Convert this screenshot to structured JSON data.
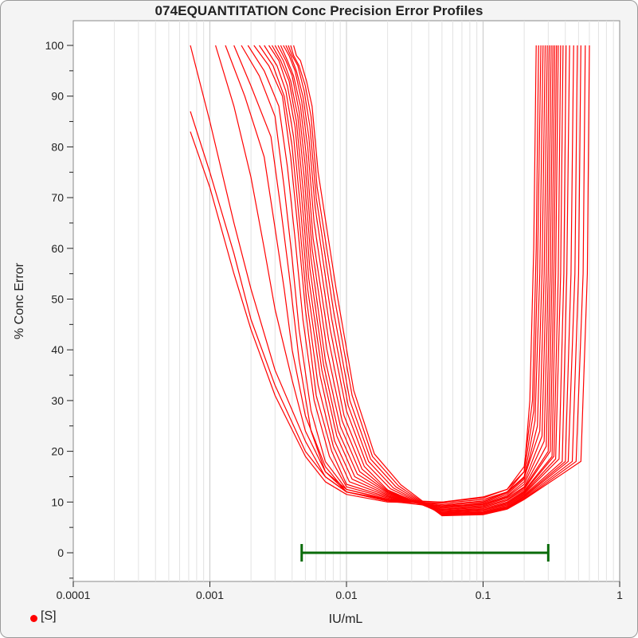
{
  "chart_data": {
    "type": "line",
    "title": "074EQUANTITATION Conc Precision Error Profiles",
    "xlabel": "IU/mL",
    "ylabel": "% Conc Error",
    "x_scale": "log",
    "xlim": [
      0.0001,
      1
    ],
    "ylim": [
      -6,
      100
    ],
    "x_ticks": [
      "0.0001",
      "0.001",
      "0.01",
      "0.1",
      "1"
    ],
    "y_ticks": [
      "0",
      "10",
      "20",
      "30",
      "40",
      "50",
      "60",
      "70",
      "80",
      "90",
      "100"
    ],
    "grid": true,
    "legend": {
      "position": "bottom-left",
      "entries": [
        {
          "label": "[S]",
          "color": "#ff0000",
          "marker": "dot"
        }
      ]
    },
    "series_color": "#ff0000",
    "profiles": [
      [
        [
          0.00072,
          83
        ],
        [
          0.001,
          72
        ],
        [
          0.0015,
          55
        ],
        [
          0.002,
          44
        ],
        [
          0.003,
          31
        ],
        [
          0.005,
          19
        ],
        [
          0.007,
          14
        ],
        [
          0.01,
          11.5
        ],
        [
          0.02,
          10
        ],
        [
          0.05,
          9.8
        ],
        [
          0.1,
          10.5
        ],
        [
          0.15,
          12
        ],
        [
          0.2,
          16
        ],
        [
          0.22,
          30
        ],
        [
          0.235,
          60
        ],
        [
          0.245,
          100
        ]
      ],
      [
        [
          0.00072,
          87
        ],
        [
          0.001,
          75
        ],
        [
          0.0015,
          59
        ],
        [
          0.002,
          46
        ],
        [
          0.003,
          33
        ],
        [
          0.005,
          20
        ],
        [
          0.007,
          15
        ],
        [
          0.01,
          12
        ],
        [
          0.02,
          10.2
        ],
        [
          0.05,
          10
        ],
        [
          0.1,
          11
        ],
        [
          0.15,
          12.5
        ],
        [
          0.2,
          17
        ],
        [
          0.23,
          30
        ],
        [
          0.245,
          60
        ],
        [
          0.255,
          100
        ]
      ],
      [
        [
          0.00072,
          100
        ],
        [
          0.001,
          85
        ],
        [
          0.0015,
          65
        ],
        [
          0.002,
          52
        ],
        [
          0.003,
          36
        ],
        [
          0.005,
          22
        ],
        [
          0.007,
          15
        ],
        [
          0.01,
          12
        ],
        [
          0.02,
          10.5
        ],
        [
          0.05,
          10
        ],
        [
          0.1,
          10.8
        ],
        [
          0.15,
          12.5
        ],
        [
          0.2,
          16
        ],
        [
          0.235,
          28
        ],
        [
          0.25,
          55
        ],
        [
          0.265,
          100
        ]
      ],
      [
        [
          0.0011,
          100
        ],
        [
          0.0015,
          88
        ],
        [
          0.002,
          74
        ],
        [
          0.0025,
          60
        ],
        [
          0.003,
          48
        ],
        [
          0.004,
          34
        ],
        [
          0.005,
          24
        ],
        [
          0.007,
          16
        ],
        [
          0.01,
          12.5
        ],
        [
          0.02,
          10.5
        ],
        [
          0.05,
          9.5
        ],
        [
          0.1,
          10.2
        ],
        [
          0.15,
          12
        ],
        [
          0.2,
          15
        ],
        [
          0.24,
          26
        ],
        [
          0.26,
          55
        ],
        [
          0.275,
          100
        ]
      ],
      [
        [
          0.0013,
          100
        ],
        [
          0.0018,
          90
        ],
        [
          0.0025,
          78
        ],
        [
          0.003,
          64
        ],
        [
          0.0035,
          52
        ],
        [
          0.004,
          40
        ],
        [
          0.005,
          27
        ],
        [
          0.007,
          17
        ],
        [
          0.01,
          12
        ],
        [
          0.02,
          10.2
        ],
        [
          0.05,
          9
        ],
        [
          0.1,
          9.8
        ],
        [
          0.15,
          11.5
        ],
        [
          0.2,
          14.5
        ],
        [
          0.25,
          25
        ],
        [
          0.27,
          55
        ],
        [
          0.285,
          100
        ]
      ],
      [
        [
          0.0015,
          100
        ],
        [
          0.002,
          92
        ],
        [
          0.0028,
          82
        ],
        [
          0.0033,
          68
        ],
        [
          0.0038,
          55
        ],
        [
          0.0045,
          38
        ],
        [
          0.0055,
          24
        ],
        [
          0.007,
          16
        ],
        [
          0.01,
          12
        ],
        [
          0.02,
          10.4
        ],
        [
          0.05,
          9.3
        ],
        [
          0.1,
          10
        ],
        [
          0.15,
          11.8
        ],
        [
          0.2,
          14.8
        ],
        [
          0.26,
          24
        ],
        [
          0.28,
          55
        ],
        [
          0.295,
          100
        ]
      ],
      [
        [
          0.0017,
          100
        ],
        [
          0.0023,
          94
        ],
        [
          0.003,
          86
        ],
        [
          0.0035,
          72
        ],
        [
          0.004,
          58
        ],
        [
          0.0045,
          44
        ],
        [
          0.0055,
          28
        ],
        [
          0.007,
          18
        ],
        [
          0.01,
          12.5
        ],
        [
          0.02,
          10.6
        ],
        [
          0.05,
          9.2
        ],
        [
          0.1,
          9.6
        ],
        [
          0.15,
          11.2
        ],
        [
          0.2,
          14
        ],
        [
          0.27,
          23
        ],
        [
          0.29,
          55
        ],
        [
          0.305,
          100
        ]
      ],
      [
        [
          0.0019,
          100
        ],
        [
          0.0025,
          95
        ],
        [
          0.0032,
          88
        ],
        [
          0.0037,
          76
        ],
        [
          0.0042,
          62
        ],
        [
          0.0048,
          46
        ],
        [
          0.0058,
          30
        ],
        [
          0.0075,
          19
        ],
        [
          0.01,
          13
        ],
        [
          0.02,
          10.8
        ],
        [
          0.05,
          9
        ],
        [
          0.1,
          9.5
        ],
        [
          0.15,
          11
        ],
        [
          0.2,
          13.5
        ],
        [
          0.28,
          22
        ],
        [
          0.3,
          55
        ],
        [
          0.315,
          100
        ]
      ],
      [
        [
          0.0021,
          100
        ],
        [
          0.0027,
          96
        ],
        [
          0.0034,
          90
        ],
        [
          0.0039,
          78
        ],
        [
          0.0044,
          64
        ],
        [
          0.005,
          48
        ],
        [
          0.006,
          31
        ],
        [
          0.0078,
          20
        ],
        [
          0.01,
          13.5
        ],
        [
          0.02,
          11
        ],
        [
          0.05,
          8.8
        ],
        [
          0.1,
          9.3
        ],
        [
          0.15,
          10.8
        ],
        [
          0.2,
          13
        ],
        [
          0.29,
          21
        ],
        [
          0.31,
          55
        ],
        [
          0.325,
          100
        ]
      ],
      [
        [
          0.0023,
          100
        ],
        [
          0.0029,
          96
        ],
        [
          0.0035,
          90
        ],
        [
          0.004,
          80
        ],
        [
          0.0045,
          66
        ],
        [
          0.0051,
          50
        ],
        [
          0.0062,
          33
        ],
        [
          0.008,
          21
        ],
        [
          0.0105,
          14
        ],
        [
          0.02,
          11.2
        ],
        [
          0.05,
          8.6
        ],
        [
          0.1,
          9.1
        ],
        [
          0.15,
          10.5
        ],
        [
          0.2,
          12.8
        ],
        [
          0.3,
          20
        ],
        [
          0.32,
          55
        ],
        [
          0.335,
          100
        ]
      ],
      [
        [
          0.0025,
          100
        ],
        [
          0.0031,
          96
        ],
        [
          0.0036,
          91
        ],
        [
          0.0041,
          82
        ],
        [
          0.0046,
          68
        ],
        [
          0.0052,
          52
        ],
        [
          0.0064,
          35
        ],
        [
          0.0082,
          22
        ],
        [
          0.011,
          14.5
        ],
        [
          0.02,
          11.4
        ],
        [
          0.05,
          8.5
        ],
        [
          0.1,
          8.9
        ],
        [
          0.15,
          10.3
        ],
        [
          0.2,
          12.5
        ],
        [
          0.31,
          20
        ],
        [
          0.33,
          55
        ],
        [
          0.345,
          100
        ]
      ],
      [
        [
          0.0027,
          100
        ],
        [
          0.0032,
          97
        ],
        [
          0.0037,
          92
        ],
        [
          0.0042,
          84
        ],
        [
          0.0047,
          70
        ],
        [
          0.0053,
          54
        ],
        [
          0.0066,
          36
        ],
        [
          0.0085,
          23
        ],
        [
          0.0115,
          15
        ],
        [
          0.02,
          11.6
        ],
        [
          0.05,
          8.3
        ],
        [
          0.1,
          8.7
        ],
        [
          0.15,
          10
        ],
        [
          0.2,
          12.2
        ],
        [
          0.32,
          19
        ],
        [
          0.34,
          55
        ],
        [
          0.355,
          100
        ]
      ],
      [
        [
          0.00285,
          100
        ],
        [
          0.0033,
          97
        ],
        [
          0.0038,
          93
        ],
        [
          0.0043,
          85
        ],
        [
          0.0048,
          72
        ],
        [
          0.0054,
          56
        ],
        [
          0.0068,
          37
        ],
        [
          0.0087,
          24
        ],
        [
          0.012,
          15.5
        ],
        [
          0.02,
          11.8
        ],
        [
          0.05,
          8.2
        ],
        [
          0.1,
          8.5
        ],
        [
          0.15,
          9.8
        ],
        [
          0.2,
          12
        ],
        [
          0.33,
          19
        ],
        [
          0.355,
          55
        ],
        [
          0.37,
          100
        ]
      ],
      [
        [
          0.003,
          100
        ],
        [
          0.00345,
          97
        ],
        [
          0.0039,
          93
        ],
        [
          0.0044,
          86
        ],
        [
          0.0049,
          74
        ],
        [
          0.0055,
          58
        ],
        [
          0.007,
          38
        ],
        [
          0.009,
          25
        ],
        [
          0.0125,
          16
        ],
        [
          0.02,
          12
        ],
        [
          0.05,
          8
        ],
        [
          0.1,
          8.4
        ],
        [
          0.15,
          9.6
        ],
        [
          0.2,
          11.8
        ],
        [
          0.34,
          18.5
        ],
        [
          0.37,
          55
        ],
        [
          0.385,
          100
        ]
      ],
      [
        [
          0.00315,
          100
        ],
        [
          0.0036,
          97
        ],
        [
          0.004,
          94
        ],
        [
          0.0045,
          87
        ],
        [
          0.005,
          76
        ],
        [
          0.0056,
          60
        ],
        [
          0.0072,
          40
        ],
        [
          0.0093,
          26
        ],
        [
          0.013,
          16.5
        ],
        [
          0.02,
          12.2
        ],
        [
          0.05,
          7.9
        ],
        [
          0.1,
          8.2
        ],
        [
          0.15,
          9.4
        ],
        [
          0.2,
          11.6
        ],
        [
          0.36,
          18.5
        ],
        [
          0.39,
          55
        ],
        [
          0.405,
          100
        ]
      ],
      [
        [
          0.0033,
          100
        ],
        [
          0.0037,
          97
        ],
        [
          0.0041,
          94
        ],
        [
          0.0046,
          88
        ],
        [
          0.0051,
          78
        ],
        [
          0.0057,
          62
        ],
        [
          0.0074,
          42
        ],
        [
          0.0096,
          27
        ],
        [
          0.0135,
          17
        ],
        [
          0.02,
          12.4
        ],
        [
          0.05,
          7.8
        ],
        [
          0.1,
          8
        ],
        [
          0.15,
          9.2
        ],
        [
          0.2,
          11.4
        ],
        [
          0.38,
          18
        ],
        [
          0.41,
          55
        ],
        [
          0.43,
          100
        ]
      ],
      [
        [
          0.00345,
          100
        ],
        [
          0.0038,
          98
        ],
        [
          0.0042,
          95
        ],
        [
          0.0047,
          89
        ],
        [
          0.0052,
          80
        ],
        [
          0.0058,
          65
        ],
        [
          0.0076,
          44
        ],
        [
          0.01,
          28
        ],
        [
          0.014,
          17.5
        ],
        [
          0.021,
          12.6
        ],
        [
          0.05,
          7.7
        ],
        [
          0.1,
          7.9
        ],
        [
          0.15,
          9
        ],
        [
          0.2,
          11.2
        ],
        [
          0.4,
          18
        ],
        [
          0.44,
          55
        ],
        [
          0.46,
          100
        ]
      ],
      [
        [
          0.0036,
          100
        ],
        [
          0.0039,
          98
        ],
        [
          0.0043,
          95
        ],
        [
          0.0048,
          90
        ],
        [
          0.0053,
          82
        ],
        [
          0.0059,
          68
        ],
        [
          0.0078,
          46
        ],
        [
          0.0103,
          29
        ],
        [
          0.0145,
          18
        ],
        [
          0.022,
          12.8
        ],
        [
          0.05,
          7.6
        ],
        [
          0.1,
          7.8
        ],
        [
          0.15,
          8.9
        ],
        [
          0.2,
          11
        ],
        [
          0.42,
          18
        ],
        [
          0.47,
          55
        ],
        [
          0.49,
          100
        ]
      ],
      [
        [
          0.00375,
          100
        ],
        [
          0.004,
          98
        ],
        [
          0.0044,
          96
        ],
        [
          0.0049,
          91
        ],
        [
          0.0054,
          84
        ],
        [
          0.006,
          70
        ],
        [
          0.008,
          48
        ],
        [
          0.0106,
          30
        ],
        [
          0.015,
          18.5
        ],
        [
          0.023,
          13
        ],
        [
          0.05,
          7.5
        ],
        [
          0.1,
          7.7
        ],
        [
          0.15,
          8.8
        ],
        [
          0.2,
          10.8
        ],
        [
          0.45,
          18
        ],
        [
          0.5,
          55
        ],
        [
          0.52,
          100
        ]
      ],
      [
        [
          0.0039,
          100
        ],
        [
          0.0041,
          98
        ],
        [
          0.0045,
          96
        ],
        [
          0.005,
          92
        ],
        [
          0.0055,
          86
        ],
        [
          0.0061,
          72
        ],
        [
          0.0082,
          50
        ],
        [
          0.011,
          31
        ],
        [
          0.0155,
          19
        ],
        [
          0.024,
          13.2
        ],
        [
          0.05,
          7.4
        ],
        [
          0.1,
          7.6
        ],
        [
          0.15,
          8.7
        ],
        [
          0.2,
          10.6
        ],
        [
          0.48,
          18
        ],
        [
          0.54,
          55
        ],
        [
          0.56,
          100
        ]
      ],
      [
        [
          0.0041,
          100
        ],
        [
          0.0043,
          98
        ],
        [
          0.0046,
          97
        ],
        [
          0.0051,
          93
        ],
        [
          0.0056,
          88
        ],
        [
          0.0062,
          75
        ],
        [
          0.0084,
          52
        ],
        [
          0.0113,
          32
        ],
        [
          0.016,
          19.5
        ],
        [
          0.025,
          13.4
        ],
        [
          0.05,
          7.3
        ],
        [
          0.1,
          7.5
        ],
        [
          0.15,
          8.6
        ],
        [
          0.2,
          10.5
        ],
        [
          0.52,
          18
        ],
        [
          0.58,
          55
        ],
        [
          0.6,
          100
        ]
      ]
    ],
    "range_bar": {
      "x_start": 0.0047,
      "x_end": 0.3,
      "y": 0,
      "color": "#0a6b0a"
    }
  },
  "legend_label": "[S]"
}
